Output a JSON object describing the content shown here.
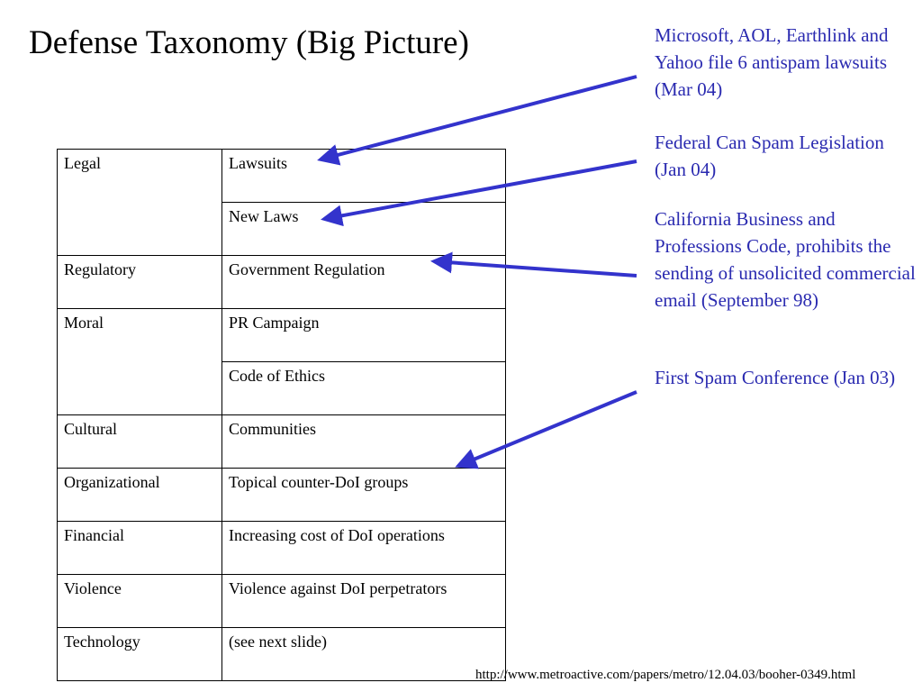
{
  "title": "Defense Taxonomy (Big Picture)",
  "table": {
    "rows": [
      {
        "category": "Legal",
        "items": [
          "Lawsuits",
          "New Laws"
        ]
      },
      {
        "category": "Regulatory",
        "items": [
          "Government Regulation"
        ]
      },
      {
        "category": "Moral",
        "items": [
          "PR Campaign",
          "Code of Ethics"
        ]
      },
      {
        "category": "Cultural",
        "items": [
          "Communities"
        ]
      },
      {
        "category": "Organizational",
        "items": [
          "Topical counter-DoI groups"
        ]
      },
      {
        "category": "Financial",
        "items": [
          "Increasing cost of DoI operations"
        ]
      },
      {
        "category": "Violence",
        "items": [
          "Violence against DoI perpetrators"
        ]
      },
      {
        "category": "Technology",
        "items": [
          "(see next slide)"
        ]
      }
    ]
  },
  "annotations": [
    {
      "text": "Microsoft, AOL, Earthlink and Yahoo file 6 antispam lawsuits (Mar 04)"
    },
    {
      "text": "Federal Can Spam Legislation (Jan 04)"
    },
    {
      "text": "California Business and Professions Code, prohibits the sending of unsolicited commercial email (September 98)"
    },
    {
      "text": "First Spam Conference (Jan 03)"
    }
  ],
  "source_url": "http://www.metroactive.com/papers/metro/12.04.03/booher-0349.html",
  "colors": {
    "annotation_text": "#2a2ab0",
    "arrow": "#3333cc"
  }
}
